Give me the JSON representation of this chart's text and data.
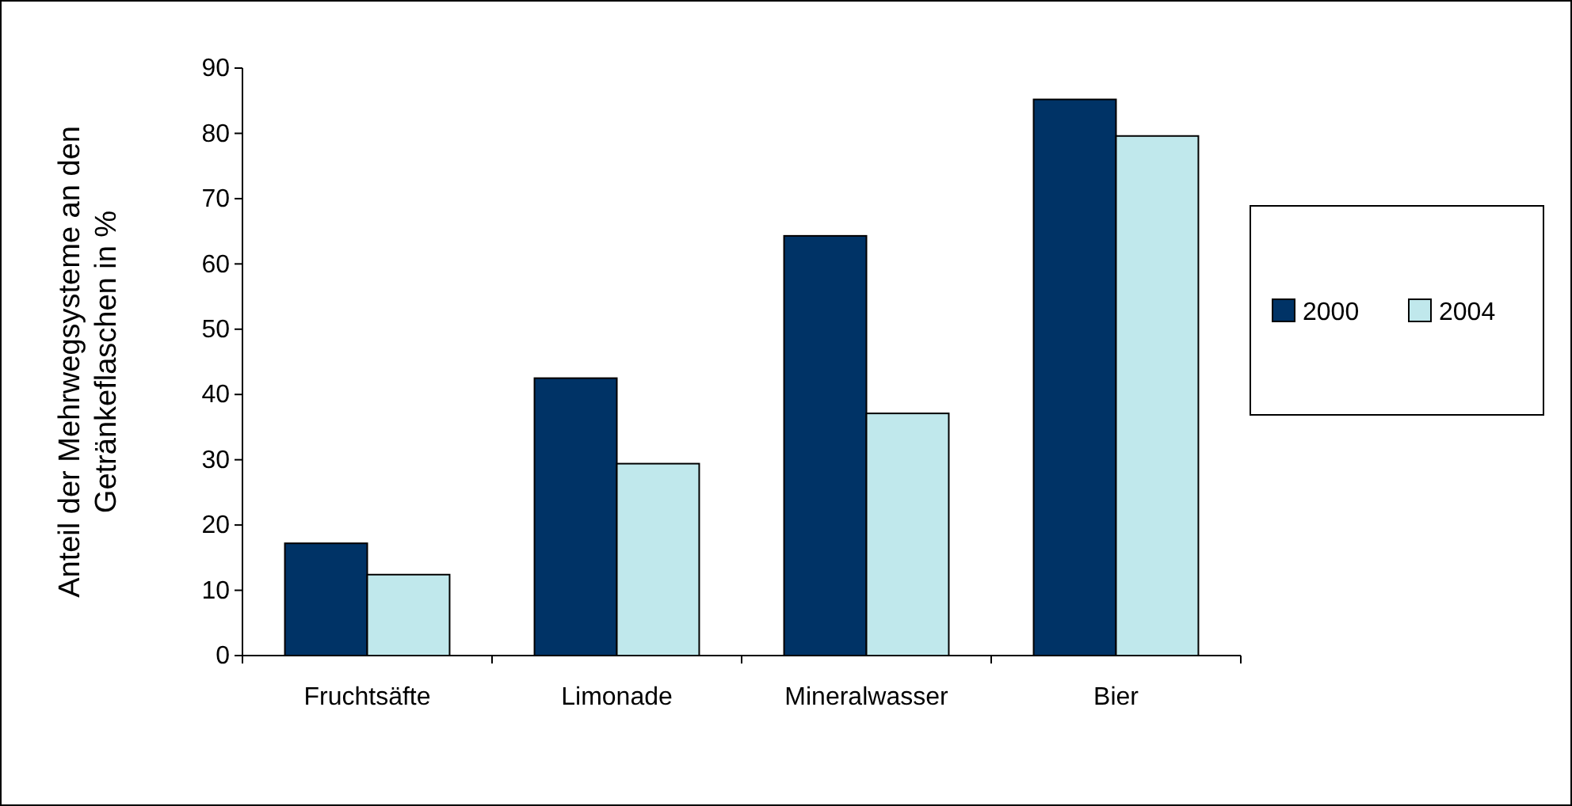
{
  "chart_data": {
    "type": "bar",
    "ylabel": "Anteil der Mehrwegsysteme an den Getränkeflaschen in %",
    "categories": [
      "Fruchtsäfte",
      "Limonade",
      "Mineralwasser",
      "Bier"
    ],
    "series": [
      {
        "name": "2000",
        "color": "#003366",
        "values": [
          17.2,
          42.5,
          64.3,
          85.2
        ]
      },
      {
        "name": "2004",
        "color": "#c0e8ec",
        "values": [
          12.4,
          29.4,
          37.1,
          79.6
        ]
      }
    ],
    "ylim": [
      0,
      90
    ],
    "yticks": [
      0,
      10,
      20,
      30,
      40,
      50,
      60,
      70,
      80,
      90
    ],
    "legend": "right"
  }
}
